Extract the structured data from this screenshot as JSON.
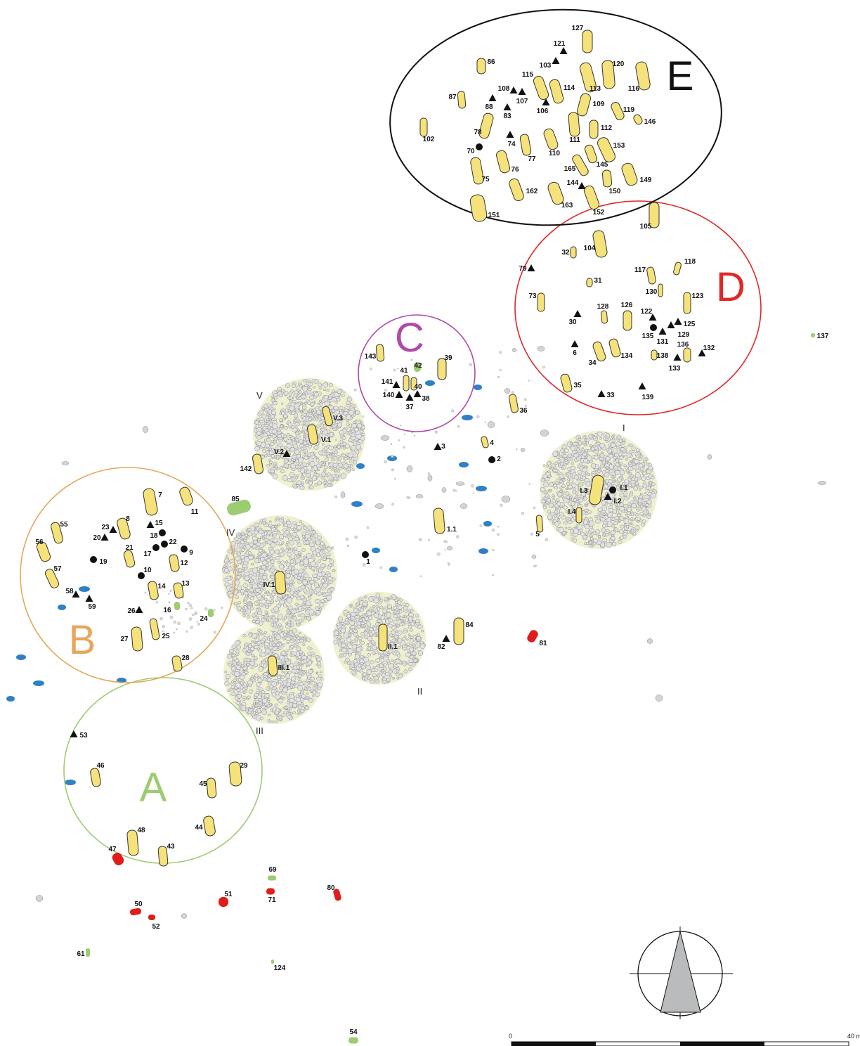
{
  "colors": {
    "stone": "#f6e27a",
    "stone_outline": "#333333",
    "cairn_fill": "#eef0cf",
    "pebble": "#d4d4d4",
    "blue_stone": "#2f80c4",
    "green_stone": "#9dcc72",
    "red_stone": "#e01c1c",
    "zone_A": "#9ccc72",
    "zone_B": "#e6a75c",
    "zone_C": "#b04aa8",
    "zone_D": "#e02828",
    "zone_E": "#111111"
  },
  "zones": [
    {
      "id": "A",
      "label": "A"
    },
    {
      "id": "B",
      "label": "B"
    },
    {
      "id": "C",
      "label": "C"
    },
    {
      "id": "D",
      "label": "D"
    },
    {
      "id": "E",
      "label": "E"
    }
  ],
  "cairns": [
    {
      "id": "I",
      "label": "I"
    },
    {
      "id": "II",
      "label": "II"
    },
    {
      "id": "III",
      "label": "III"
    },
    {
      "id": "IV",
      "label": "IV"
    },
    {
      "id": "V",
      "label": "V"
    }
  ],
  "stones": [
    "7",
    "11",
    "8",
    "21",
    "12",
    "13",
    "14",
    "55",
    "56",
    "57",
    "27",
    "25",
    "28",
    "16",
    "24",
    "46",
    "29",
    "45",
    "44",
    "48",
    "43",
    "47",
    "50",
    "52",
    "51",
    "71",
    "69",
    "80",
    "61",
    "124",
    "54",
    "85",
    "142",
    "143",
    "39",
    "42",
    "41",
    "40",
    "4",
    "1.1",
    "36",
    "5",
    "84",
    "81",
    "137",
    "105",
    "104",
    "32",
    "31",
    "73",
    "117",
    "118",
    "130",
    "123",
    "128",
    "126",
    "34",
    "134",
    "138",
    "136",
    "35",
    "127",
    "86",
    "115",
    "114",
    "120",
    "113",
    "116",
    "87",
    "109",
    "119",
    "146",
    "102",
    "78",
    "112",
    "111",
    "110",
    "153",
    "77",
    "76",
    "75",
    "165",
    "145",
    "149",
    "150",
    "162",
    "163",
    "152",
    "151",
    "V.1",
    "V.3",
    "IV.1",
    "III.1",
    "II.1",
    "I.3",
    "I.4"
  ],
  "finds_triangle": [
    "121",
    "103",
    "108",
    "107",
    "88",
    "83",
    "106",
    "74",
    "144",
    "79",
    "30",
    "122",
    "125",
    "131",
    "6",
    "129",
    "132",
    "133",
    "33",
    "139",
    "141",
    "140",
    "37",
    "38",
    "3",
    "V.2",
    "I.2",
    "82",
    "15",
    "23",
    "20",
    "58",
    "59",
    "26",
    "53"
  ],
  "finds_circle": [
    "70",
    "135",
    "2",
    "1",
    "I.1",
    "18",
    "22",
    "17",
    "9",
    "19",
    "10"
  ],
  "scale": {
    "start": "0",
    "end": "40 m"
  },
  "north_arrow": {
    "icon": "north-arrow-icon"
  }
}
